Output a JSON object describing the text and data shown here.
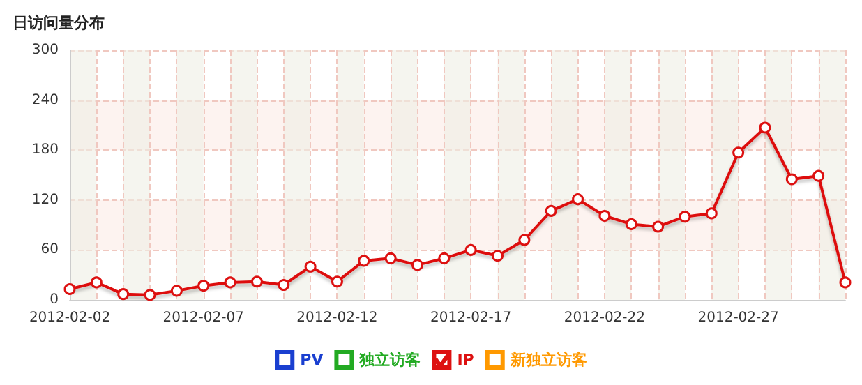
{
  "chart_data": {
    "type": "line",
    "title": "日访问量分布",
    "x": [
      "2012-02-02",
      "2012-02-03",
      "2012-02-04",
      "2012-02-05",
      "2012-02-06",
      "2012-02-07",
      "2012-02-08",
      "2012-02-09",
      "2012-02-10",
      "2012-02-11",
      "2012-02-12",
      "2012-02-13",
      "2012-02-14",
      "2012-02-15",
      "2012-02-16",
      "2012-02-17",
      "2012-02-18",
      "2012-02-19",
      "2012-02-20",
      "2012-02-21",
      "2012-02-22",
      "2012-02-23",
      "2012-02-24",
      "2012-02-25",
      "2012-02-26",
      "2012-02-27",
      "2012-02-28",
      "2012-02-29",
      "2012-03-01",
      "2012-03-02"
    ],
    "series": [
      {
        "name": "PV",
        "color": "#1a3fd0",
        "values": [
          null,
          null,
          null,
          null,
          null,
          null,
          null,
          null,
          null,
          null,
          null,
          null,
          null,
          null,
          null,
          null,
          null,
          null,
          null,
          null,
          null,
          null,
          null,
          null,
          null,
          null,
          null,
          null,
          null,
          null
        ]
      },
      {
        "name": "独立访客",
        "color": "#22aa22",
        "values": [
          null,
          null,
          null,
          null,
          null,
          null,
          null,
          null,
          null,
          null,
          null,
          null,
          null,
          null,
          null,
          null,
          null,
          null,
          null,
          null,
          null,
          null,
          null,
          null,
          null,
          null,
          null,
          null,
          null,
          null
        ]
      },
      {
        "name": "IP",
        "color": "#dd1111",
        "values": [
          13,
          21,
          7,
          6,
          11,
          17,
          21,
          22,
          18,
          40,
          22,
          47,
          50,
          42,
          50,
          60,
          53,
          72,
          107,
          121,
          101,
          91,
          88,
          100,
          104,
          177,
          207,
          145,
          149,
          21
        ]
      },
      {
        "name": "新独立访客",
        "color": "#ff9900",
        "values": [
          null,
          null,
          null,
          null,
          null,
          null,
          null,
          null,
          null,
          null,
          null,
          null,
          null,
          null,
          null,
          null,
          null,
          null,
          null,
          null,
          null,
          null,
          null,
          null,
          null,
          null,
          null,
          null,
          null,
          null
        ]
      }
    ],
    "xlim": [
      "2012-02-02",
      "2012-03-02"
    ],
    "xticks": [
      {
        "value": "2012-02-02",
        "label": "2012-02-02"
      },
      {
        "value": "2012-02-03",
        "label": null
      },
      {
        "value": "2012-02-04",
        "label": null
      },
      {
        "value": "2012-02-05",
        "label": null
      },
      {
        "value": "2012-02-06",
        "label": null
      },
      {
        "value": "2012-02-07",
        "label": "2012-02-07"
      },
      {
        "value": "2012-02-08",
        "label": null
      },
      {
        "value": "2012-02-09",
        "label": null
      },
      {
        "value": "2012-02-10",
        "label": null
      },
      {
        "value": "2012-02-11",
        "label": null
      },
      {
        "value": "2012-02-12",
        "label": "2012-02-12"
      },
      {
        "value": "2012-02-13",
        "label": null
      },
      {
        "value": "2012-02-14",
        "label": null
      },
      {
        "value": "2012-02-15",
        "label": null
      },
      {
        "value": "2012-02-16",
        "label": null
      },
      {
        "value": "2012-02-17",
        "label": "2012-02-17"
      },
      {
        "value": "2012-02-18",
        "label": null
      },
      {
        "value": "2012-02-19",
        "label": null
      },
      {
        "value": "2012-02-20",
        "label": null
      },
      {
        "value": "2012-02-21",
        "label": null
      },
      {
        "value": "2012-02-22",
        "label": "2012-02-22"
      },
      {
        "value": "2012-02-23",
        "label": null
      },
      {
        "value": "2012-02-24",
        "label": null
      },
      {
        "value": "2012-02-25",
        "label": null
      },
      {
        "value": "2012-02-26",
        "label": null
      },
      {
        "value": "2012-02-27",
        "label": "2012-02-27"
      },
      {
        "value": "2012-02-28",
        "label": null
      },
      {
        "value": "2012-02-29",
        "label": null
      },
      {
        "value": "2012-03-01",
        "label": null
      },
      {
        "value": "2012-03-02",
        "label": null
      }
    ],
    "ylim": [
      0,
      300
    ],
    "yticks": [
      0,
      60,
      120,
      180,
      240,
      300
    ],
    "grid": true,
    "legend": "bottom",
    "marker": "circle",
    "line_style": "solid"
  }
}
